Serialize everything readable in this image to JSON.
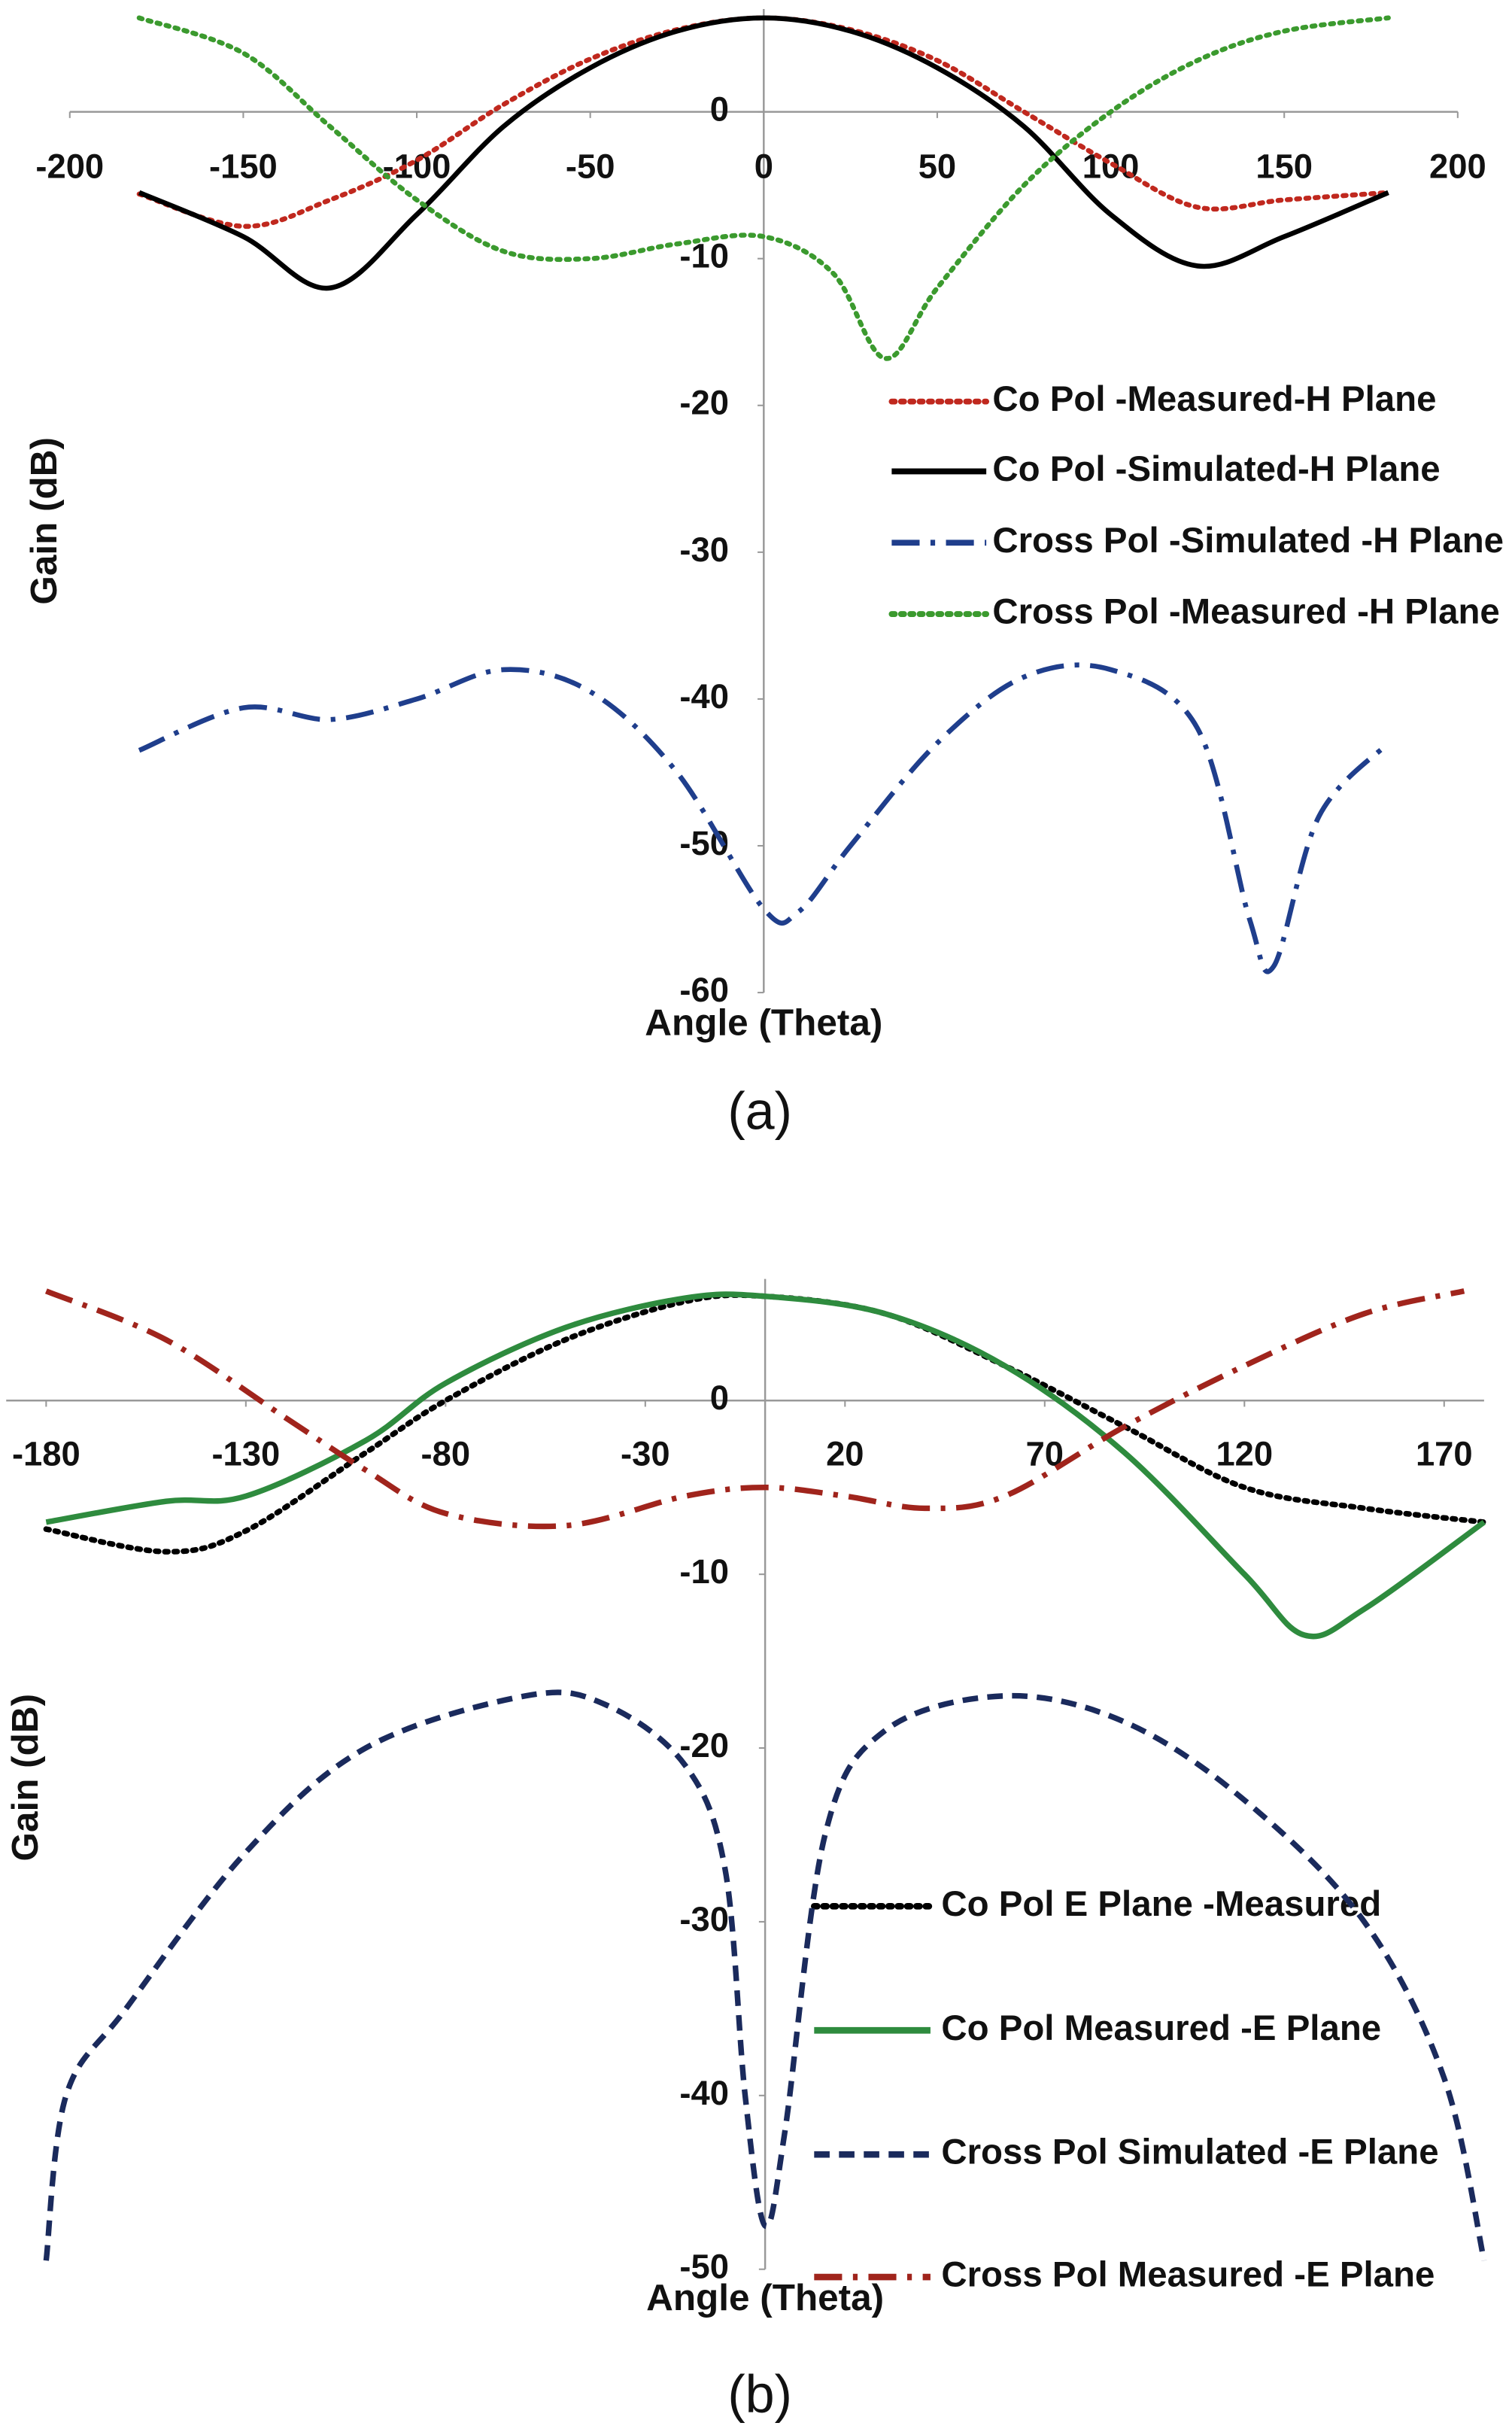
{
  "chart_data": [
    {
      "type": "line",
      "caption": "(a)",
      "xlabel": "Angle (Theta)",
      "ylabel": "Gain (dB)",
      "xlim": [
        -200,
        200
      ],
      "xticks": [
        -200,
        -150,
        -100,
        -50,
        0,
        50,
        100,
        150,
        200
      ],
      "ylim": [
        -60,
        7
      ],
      "yticks": [
        0,
        -10,
        -20,
        -30,
        -40,
        -50,
        -60
      ],
      "grid": false,
      "series": [
        {
          "name": "Co Pol -Measured-H Plane",
          "color": "#c0281e",
          "linestyle": "dotted",
          "x": [
            -180,
            -150,
            -125,
            -100,
            -75,
            -50,
            -25,
            0,
            25,
            50,
            75,
            100,
            125,
            150,
            180
          ],
          "values": [
            -5.6,
            -7.8,
            -6,
            -3.3,
            0.5,
            3.6,
            5.6,
            6.4,
            5.6,
            3.5,
            0,
            -3.5,
            -6.5,
            -6,
            -5.5
          ]
        },
        {
          "name": "Co Pol -Simulated-H Plane",
          "color": "#000000",
          "linestyle": "solid",
          "x": [
            -180,
            -150,
            -125,
            -100,
            -75,
            -50,
            -25,
            0,
            25,
            50,
            75,
            100,
            125,
            150,
            180
          ],
          "values": [
            -5.5,
            -8.5,
            -12,
            -7,
            -1,
            3,
            5.5,
            6.4,
            5.5,
            3,
            -1,
            -7,
            -10.5,
            -8.5,
            -5.5
          ]
        },
        {
          "name": "Cross Pol -Simulated -H Plane",
          "color": "#1f3e8c",
          "linestyle": "dashdot",
          "x": [
            -180,
            -150,
            -125,
            -100,
            -75,
            -50,
            -25,
            0,
            10,
            25,
            50,
            75,
            100,
            125,
            140,
            147,
            160,
            180
          ],
          "values": [
            -43.5,
            -40.6,
            -41.4,
            -40,
            -38,
            -39.5,
            -45,
            -54.3,
            -54.5,
            -50,
            -43,
            -38.5,
            -38,
            -42,
            -55,
            -58.2,
            -48,
            -43
          ]
        },
        {
          "name": "Cross Pol -Measured -H Plane",
          "color": "#3b9a2e",
          "linestyle": "dotted",
          "x": [
            -180,
            -150,
            -125,
            -100,
            -75,
            -50,
            -25,
            0,
            20,
            35,
            50,
            75,
            100,
            125,
            150,
            180
          ],
          "values": [
            6.4,
            4,
            -1,
            -6,
            -9.5,
            -10,
            -9,
            -8.5,
            -11,
            -16.8,
            -12,
            -5,
            0,
            3.5,
            5.5,
            6.4
          ]
        }
      ]
    },
    {
      "type": "line",
      "caption": "(b)",
      "xlabel": "Angle (Theta)",
      "ylabel": "Gain (dB)",
      "xlim": [
        -190,
        180
      ],
      "xticks": [
        -180,
        -130,
        -80,
        -30,
        20,
        70,
        120,
        170
      ],
      "ylim": [
        -50,
        7
      ],
      "yticks": [
        0,
        -10,
        -20,
        -30,
        -40,
        -50
      ],
      "grid": false,
      "series": [
        {
          "name": "Co Pol E Plane -Measured",
          "color": "#000000",
          "linestyle": "dotted",
          "x": [
            -180,
            -150,
            -130,
            -100,
            -80,
            -50,
            -20,
            0,
            30,
            60,
            90,
            120,
            150,
            180
          ],
          "values": [
            -7.4,
            -8.7,
            -7.5,
            -3,
            0,
            3.5,
            5.7,
            6,
            5,
            2,
            -1.5,
            -5,
            -6.2,
            -7
          ]
        },
        {
          "name": "Co Pol Measured -E Plane",
          "color": "#2e8b3e",
          "linestyle": "solid",
          "x": [
            -180,
            -150,
            -130,
            -100,
            -80,
            -50,
            -20,
            0,
            30,
            60,
            90,
            120,
            135,
            150,
            180
          ],
          "values": [
            -7,
            -5.8,
            -5.5,
            -2.3,
            1,
            4.2,
            5.9,
            6,
            5,
            2,
            -3,
            -10,
            -13.5,
            -12,
            -7
          ]
        },
        {
          "name": "Cross Pol Simulated -E Plane",
          "color": "#1a2a5c",
          "linestyle": "dashed",
          "x": [
            -180,
            -175,
            -160,
            -130,
            -100,
            -60,
            -40,
            -20,
            -10,
            -5,
            0,
            5,
            15,
            30,
            60,
            90,
            120,
            150,
            170,
            180
          ],
          "values": [
            -49.5,
            -40,
            -35,
            -26,
            -20,
            -17,
            -17.5,
            -21,
            -27,
            -40,
            -47.5,
            -42,
            -25,
            -19,
            -17,
            -18.5,
            -23,
            -30,
            -39,
            -49.5
          ]
        },
        {
          "name": "Cross Pol Measured -E Plane",
          "color": "#a0241c",
          "linestyle": "dashdot",
          "x": [
            -180,
            -150,
            -120,
            -100,
            -80,
            -50,
            -20,
            0,
            20,
            40,
            60,
            90,
            120,
            150,
            175
          ],
          "values": [
            6.3,
            3.5,
            -1,
            -4,
            -6.5,
            -7.2,
            -5.5,
            -5,
            -5.5,
            -6.2,
            -5.5,
            -1.5,
            2,
            5,
            6.3
          ]
        }
      ]
    }
  ]
}
